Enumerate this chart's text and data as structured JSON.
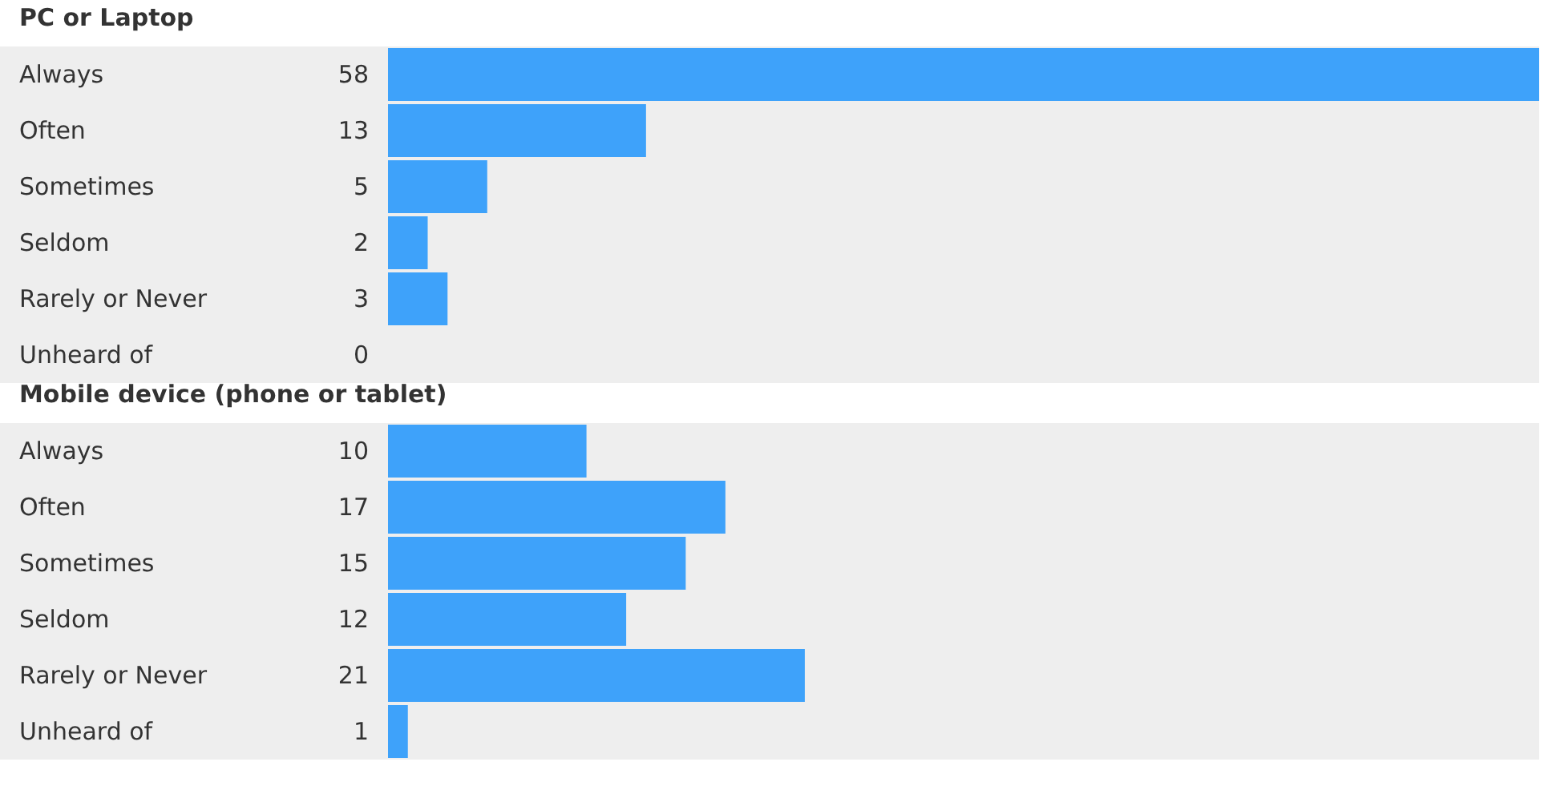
{
  "chart_data": [
    {
      "type": "bar",
      "orientation": "horizontal",
      "title": "PC or Laptop",
      "categories": [
        "Always",
        "Often",
        "Sometimes",
        "Seldom",
        "Rarely or Never",
        "Unheard of"
      ],
      "values": [
        58,
        13,
        5,
        2,
        3,
        0
      ],
      "color": "#3ea2fa",
      "xlim": [
        0,
        58
      ],
      "data_labels": true,
      "tick_labels": "y"
    },
    {
      "type": "bar",
      "orientation": "horizontal",
      "title": "Mobile device (phone or tablet)",
      "categories": [
        "Always",
        "Often",
        "Sometimes",
        "Seldom",
        "Rarely or Never",
        "Unheard of"
      ],
      "values": [
        10,
        17,
        15,
        12,
        21,
        1
      ],
      "color": "#3ea2fa",
      "xlim": [
        0,
        58
      ],
      "data_labels": true,
      "tick_labels": "y"
    }
  ]
}
